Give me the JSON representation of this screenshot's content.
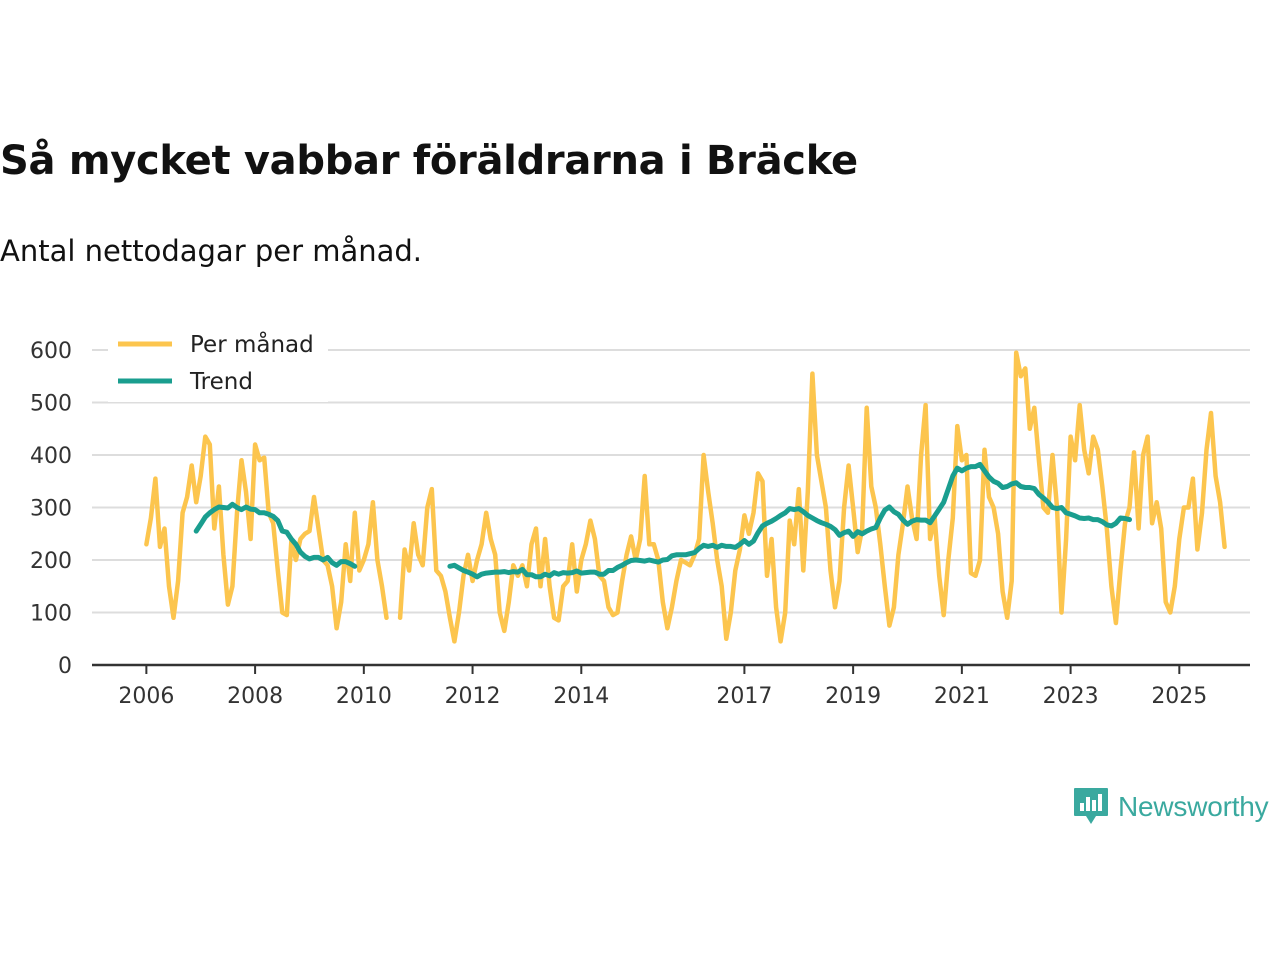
{
  "title": "Så mycket vabbar föräldrarna i Bräcke",
  "subtitle": "Antal nettodagar per månad.",
  "brand": {
    "name": "Newsworthy",
    "icon": "newsworthy-logo-icon",
    "color": "#3aa99f"
  },
  "colors": {
    "monthly": "#fcc54e",
    "trend": "#1a9e8f",
    "grid": "#dddddd",
    "axis": "#333333"
  },
  "chart_data": {
    "type": "line",
    "title": "Så mycket vabbar föräldrarna i Bräcke",
    "subtitle": "Antal nettodagar per månad.",
    "xlabel": "",
    "ylabel": "",
    "ylim": [
      0,
      600
    ],
    "xlim": [
      2005.0,
      2026.3
    ],
    "y_ticks": [
      0,
      100,
      200,
      300,
      400,
      500,
      600
    ],
    "x_ticks": [
      2006,
      2008,
      2010,
      2012,
      2014,
      2017,
      2019,
      2021,
      2023,
      2025
    ],
    "x_tick_labels": [
      "2006",
      "2008",
      "2010",
      "2012",
      "2014",
      "2017",
      "2019",
      "2021",
      "2023",
      "2025"
    ],
    "grid": true,
    "legend": {
      "position": "top-left"
    },
    "series": [
      {
        "name": "Per månad",
        "color": "#fcc54e",
        "segments": [
          {
            "start": 2006.0,
            "values": [
              230,
              280,
              355,
              225,
              260,
              150,
              90,
              160,
              290,
              320,
              380,
              310,
              360,
              435,
              420,
              260,
              340,
              210,
              115,
              150,
              290,
              390,
              330,
              240,
              420,
              390,
              395,
              290,
              270,
              180,
              100,
              95,
              235,
              200,
              240,
              250,
              255,
              320,
              260,
              200,
              190,
              150,
              70,
              120,
              230,
              160,
              290,
              180,
              200,
              230,
              310,
              200,
              150,
              90
            ]
          },
          {
            "start": 2010.6667,
            "values": [
              90,
              220,
              180,
              270,
              210,
              190,
              300,
              335,
              180,
              170,
              140,
              90,
              45,
              100,
              170,
              210,
              160,
              200,
              230,
              290,
              240,
              210,
              100,
              65,
              120,
              190,
              170,
              190,
              150,
              230,
              260,
              150,
              240,
              150,
              90,
              85,
              150,
              160,
              230,
              140,
              200,
              230,
              275,
              240,
              170,
              160,
              110,
              95,
              100,
              160,
              210,
              245,
              200,
              240,
              360,
              230,
              230,
              200,
              120,
              70,
              110,
              160,
              200,
              195,
              190,
              210,
              240,
              400,
              330,
              270,
              200,
              150,
              50,
              100,
              180,
              220,
              285,
              250,
              290,
              365,
              350,
              170,
              240,
              110,
              45,
              100,
              275,
              230,
              335,
              180,
              330,
              555,
              400,
              350,
              300,
              180,
              110,
              160,
              300,
              380,
              300,
              215,
              260,
              490,
              340,
              300,
              230,
              150,
              75,
              110,
              210,
              270,
              340,
              280,
              240,
              400,
              495,
              240,
              280,
              170,
              95,
              200,
              280,
              455,
              390,
              400,
              175,
              170,
              200,
              410,
              320,
              300,
              250,
              140,
              90,
              160,
              595,
              550,
              565,
              450,
              490,
              390,
              300,
              290,
              400,
              300,
              100,
              240,
              435,
              390,
              495,
              410,
              365,
              435,
              410,
              340,
              260,
              150,
              80,
              180,
              270,
              300,
              405,
              260,
              400,
              435,
              270,
              310,
              260,
              120,
              100,
              150,
              240,
              300,
              300,
              355,
              220,
              290,
              410,
              480,
              360,
              310,
              225
            ]
          }
        ]
      },
      {
        "name": "Trend",
        "color": "#1a9e8f",
        "segments": [
          {
            "start": 2006.9167,
            "values": [
              255,
              268,
              282,
              290,
              296,
              301,
              300,
              299,
              306,
              300,
              296,
              301,
              297,
              296,
              290,
              290,
              287,
              283,
              275,
              255,
              253,
              240,
              230,
              215,
              207,
              202,
              205,
              205,
              200,
              205,
              195,
              190,
              197,
              197,
              193,
              188
            ]
          },
          {
            "start": 2011.5833,
            "values": [
              188,
              190,
              185,
              180,
              177,
              173,
              168,
              173,
              175,
              176,
              177,
              177,
              178,
              176,
              178,
              177,
              182,
              172,
              172,
              168,
              168,
              173,
              170,
              176,
              173,
              176,
              175,
              176,
              179,
              175,
              176,
              177,
              177,
              173,
              173,
              180,
              180,
              186,
              190,
              195,
              199,
              200,
              199,
              198,
              200,
              198,
              196,
              200,
              201,
              208,
              210,
              210,
              210,
              212,
              214,
              222,
              228,
              226,
              228,
              224,
              228,
              226,
              226,
              224,
              230,
              237,
              230,
              236,
              252,
              265,
              270,
              274,
              279,
              285,
              290,
              298,
              296,
              298,
              292,
              285,
              280,
              275,
              271,
              268,
              264,
              258,
              247,
              252,
              255,
              245,
              254,
              250,
              255,
              259,
              262,
              280,
              295,
              301,
              292,
              287,
              276,
              268,
              274,
              277,
              276,
              276,
              271,
              284,
              297,
              310,
              335,
              360,
              375,
              370,
              375,
              378,
              378,
              382,
              370,
              358,
              350,
              346,
              338,
              340,
              345,
              347,
              340,
              338,
              338,
              336,
              325,
              318,
              310,
              300,
              298,
              300,
              290,
              287,
              284,
              280,
              279,
              280,
              277,
              277,
              273,
              267,
              265,
              270,
              280,
              279,
              277
            ]
          }
        ]
      }
    ]
  }
}
